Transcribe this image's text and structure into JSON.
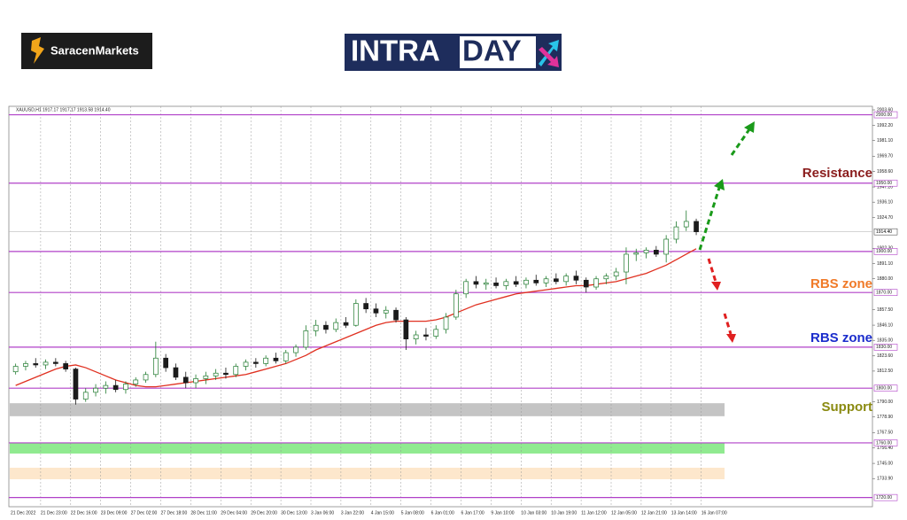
{
  "header": {
    "brand": "SaracenMarkets",
    "banner_left": "INTRA",
    "banner_right": "DAY"
  },
  "chart_data": {
    "type": "candlestick",
    "title": "XAUUSD,H1  1917.17 1917.17 1913.58 1914.40",
    "categories": [
      "21 Dec 2022",
      null,
      null,
      "21 Dec 23:00",
      null,
      null,
      "22 Dec 16:00",
      null,
      null,
      "23 Dec 09:00",
      null,
      null,
      "27 Dec 02:00",
      null,
      null,
      "27 Dec 18:00",
      null,
      null,
      "28 Dec 11:00",
      null,
      null,
      "29 Dec 04:00",
      null,
      null,
      "29 Dec 20:00",
      null,
      null,
      "30 Dec 13:00",
      null,
      null,
      "3 Jan 06:00",
      null,
      null,
      "3 Jan 22:00",
      null,
      null,
      "4 Jan 15:00",
      null,
      null,
      "5 Jan 08:00",
      null,
      null,
      "6 Jan 01:00",
      null,
      null,
      "6 Jan 17:00",
      null,
      null,
      "9 Jan 10:00",
      null,
      null,
      "10 Jan 03:00",
      null,
      null,
      "10 Jan 19:00",
      null,
      null,
      "11 Jan 12:00",
      null,
      null,
      "12 Jan 05:00",
      null,
      null,
      "12 Jan 21:00",
      null,
      null,
      "13 Jan 14:00",
      null,
      null,
      "16 Jan 07:00",
      null,
      null
    ],
    "open": [
      1812,
      1816,
      1818,
      1817,
      1819,
      1818,
      1814,
      1792,
      1797,
      1800,
      1802,
      1799,
      1803,
      1806,
      1810,
      1822,
      1815,
      1808,
      1804,
      1807,
      1809,
      1811,
      1810,
      1816,
      1819,
      1818,
      1822,
      1820,
      1826,
      1830,
      1842,
      1846,
      1843,
      1848,
      1846,
      1862,
      1858,
      1855,
      1857,
      1850,
      1836,
      1839,
      1838,
      1843,
      1852,
      1869,
      1878,
      1876,
      1877,
      1875,
      1878,
      1876,
      1879,
      1877,
      1880,
      1878,
      1882,
      1879,
      1874,
      1880,
      1882,
      1885,
      1898,
      1899,
      1901,
      1898,
      1909,
      1918,
      1922,
      null,
      null,
      null
    ],
    "high": [
      1818,
      1820,
      1822,
      1821,
      1822,
      1820,
      1815,
      1800,
      1803,
      1805,
      1806,
      1805,
      1808,
      1812,
      1834,
      1825,
      1818,
      1812,
      1810,
      1812,
      1814,
      1815,
      1818,
      1821,
      1822,
      1824,
      1826,
      1828,
      1832,
      1846,
      1850,
      1849,
      1851,
      1852,
      1865,
      1866,
      1862,
      1860,
      1859,
      1852,
      1842,
      1844,
      1846,
      1855,
      1872,
      1880,
      1882,
      1880,
      1881,
      1880,
      1882,
      1881,
      1883,
      1882,
      1884,
      1884,
      1886,
      1881,
      1882,
      1884,
      1888,
      1903,
      1902,
      1903,
      1904,
      1912,
      1922,
      1930,
      1924,
      null,
      null,
      null
    ],
    "low": [
      1810,
      1813,
      1815,
      1814,
      1816,
      1812,
      1788,
      1790,
      1794,
      1796,
      1797,
      1796,
      1801,
      1804,
      1808,
      1812,
      1806,
      1800,
      1800,
      1803,
      1806,
      1807,
      1808,
      1813,
      1815,
      1816,
      1818,
      1818,
      1823,
      1828,
      1838,
      1840,
      1841,
      1844,
      1845,
      1855,
      1852,
      1851,
      1848,
      1828,
      1832,
      1835,
      1836,
      1840,
      1850,
      1866,
      1873,
      1872,
      1873,
      1872,
      1874,
      1873,
      1875,
      1874,
      1876,
      1875,
      1876,
      1870,
      1872,
      1876,
      1879,
      1876,
      1893,
      1895,
      1896,
      1892,
      1906,
      1915,
      1912,
      null,
      null,
      null
    ],
    "close": [
      1816,
      1818,
      1817,
      1819,
      1818,
      1814,
      1792,
      1797,
      1800,
      1802,
      1799,
      1803,
      1806,
      1810,
      1822,
      1815,
      1808,
      1804,
      1807,
      1809,
      1811,
      1810,
      1816,
      1819,
      1818,
      1822,
      1820,
      1826,
      1830,
      1842,
      1846,
      1843,
      1848,
      1846,
      1862,
      1858,
      1855,
      1857,
      1850,
      1836,
      1839,
      1838,
      1843,
      1852,
      1869,
      1878,
      1876,
      1877,
      1875,
      1878,
      1876,
      1879,
      1877,
      1880,
      1878,
      1882,
      1879,
      1874,
      1880,
      1882,
      1885,
      1898,
      1899,
      1901,
      1898,
      1909,
      1918,
      1922,
      1914.4,
      null,
      null,
      null
    ],
    "up_color": "#1f7a2e",
    "down_color": "#1b1b1b",
    "moving_average": {
      "color": "#e03020",
      "values": [
        1802,
        1805,
        1808,
        1811,
        1814,
        1816,
        1817,
        1815,
        1812,
        1809,
        1806,
        1804,
        1802,
        1801,
        1801,
        1802,
        1803,
        1804,
        1805,
        1806,
        1807,
        1808,
        1809,
        1810,
        1812,
        1814,
        1816,
        1818,
        1821,
        1824,
        1828,
        1831,
        1834,
        1837,
        1840,
        1843,
        1846,
        1848,
        1849,
        1849,
        1849,
        1849,
        1850,
        1852,
        1855,
        1858,
        1861,
        1863,
        1865,
        1867,
        1869,
        1870,
        1871,
        1872,
        1873,
        1874,
        1875,
        1875,
        1876,
        1877,
        1878,
        1880,
        1882,
        1884,
        1887,
        1890,
        1894,
        1898,
        1902,
        null,
        null,
        null
      ]
    },
    "ylim": [
      1713.3,
      2006.2
    ],
    "yticks": [
      {
        "value": 2003.6,
        "label": "2003.60"
      },
      {
        "value": 1992.2,
        "label": "1992.20"
      },
      {
        "value": 1981.1,
        "label": "1981.10"
      },
      {
        "value": 1969.7,
        "label": "1969.70"
      },
      {
        "value": 1958.6,
        "label": "1958.60"
      },
      {
        "value": 1947.2,
        "label": "1947.20"
      },
      {
        "value": 1936.1,
        "label": "1936.10"
      },
      {
        "value": 1924.7,
        "label": "1924.70"
      },
      {
        "value": 1902.3,
        "label": "1902.30"
      },
      {
        "value": 1891.1,
        "label": "1891.10"
      },
      {
        "value": 1880,
        "label": "1880.00"
      },
      {
        "value": 1857.5,
        "label": "1857.50"
      },
      {
        "value": 1846.1,
        "label": "1846.10"
      },
      {
        "value": 1835,
        "label": "1835.00"
      },
      {
        "value": 1823.6,
        "label": "1823.60"
      },
      {
        "value": 1812.5,
        "label": "1812.50"
      },
      {
        "value": 1790,
        "label": "1790.00"
      },
      {
        "value": 1778.9,
        "label": "1778.90"
      },
      {
        "value": 1767.5,
        "label": "1767.50"
      },
      {
        "value": 1756.4,
        "label": "1756.40"
      },
      {
        "value": 1745,
        "label": "1745.00"
      },
      {
        "value": 1733.9,
        "label": "1733.90"
      }
    ],
    "levels": [
      {
        "value": 2000,
        "label": "2000.00"
      },
      {
        "value": 1950,
        "label": "1950.00"
      },
      {
        "value": 1900,
        "label": "1900.00"
      },
      {
        "value": 1870,
        "label": "1870.00"
      },
      {
        "value": 1830,
        "label": "1830.00"
      },
      {
        "value": 1800,
        "label": "1800.00"
      },
      {
        "value": 1760,
        "label": "1760.00"
      },
      {
        "value": 1720,
        "label": "1720.00"
      }
    ],
    "level_color": "#b040c8",
    "current_price": {
      "value": 1914.4,
      "label": "1914.40"
    },
    "zones": [
      {
        "from": 1789,
        "to": 1779.5,
        "color": "#c4c4c4"
      },
      {
        "from": 1759.9,
        "to": 1752.2,
        "color": "#90ea90"
      },
      {
        "from": 1741.8,
        "to": 1733.4,
        "color": "#fde7cc"
      }
    ],
    "annotations": [
      {
        "text": "Resistance",
        "color": "#8a1c1c"
      },
      {
        "text": "RBS zone",
        "color": "#f07a28"
      },
      {
        "text": "RBS zone",
        "color": "#1a2ccc"
      },
      {
        "text": "Support",
        "color": "#8a8a10"
      }
    ]
  }
}
